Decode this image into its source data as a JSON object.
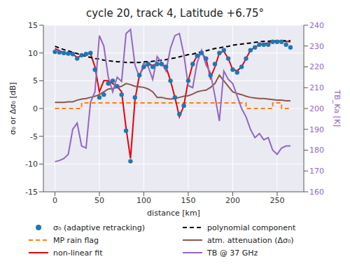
{
  "chart_data": {
    "type": "line",
    "title": "cycle 20, track 4, Latitude +6.75°",
    "x_label": "distance [km]",
    "y_label": "σ₀ or Δσ₀ [dB]",
    "y2_label": "TB_Ka [K]",
    "grid": true,
    "legend": "bottom",
    "xlim": [
      -13,
      280
    ],
    "xticks": [
      0,
      50,
      100,
      150,
      200,
      250
    ],
    "ylim": [
      -15,
      15
    ],
    "yticks": [
      -15,
      -10,
      -5,
      0,
      5,
      10,
      15
    ],
    "y2lim": [
      160,
      240
    ],
    "y2ticks": [
      160,
      170,
      180,
      190,
      200,
      210,
      220,
      230,
      240
    ],
    "x": [
      0,
      5,
      10,
      15,
      20,
      25,
      30,
      35,
      40,
      45,
      50,
      55,
      60,
      65,
      70,
      75,
      80,
      85,
      90,
      95,
      100,
      105,
      110,
      115,
      120,
      125,
      130,
      135,
      140,
      145,
      150,
      155,
      160,
      165,
      170,
      175,
      180,
      185,
      190,
      195,
      200,
      205,
      210,
      215,
      220,
      225,
      230,
      235,
      240,
      245,
      250,
      255,
      260,
      265
    ],
    "series": [
      {
        "name": "σ₀ (adaptive retracking)",
        "type": "scatter",
        "marker": "circle",
        "color": "#1f77b4",
        "values": [
          10.2,
          10.1,
          10.0,
          9.9,
          9.8,
          9.0,
          9.6,
          9.8,
          10.0,
          7.0,
          2.0,
          2.5,
          4.5,
          5.0,
          4.0,
          2.5,
          -4.0,
          -9.5,
          2.0,
          6.0,
          7.5,
          8.0,
          7.5,
          8.0,
          8.0,
          7.5,
          5.0,
          2.0,
          -1.0,
          0.5,
          5.0,
          8.0,
          9.5,
          10.0,
          9.0,
          6.0,
          8.0,
          10.0,
          10.5,
          9.0,
          7.0,
          6.5,
          7.5,
          9.0,
          10.5,
          11.0,
          11.5,
          11.5,
          11.5,
          12.0,
          12.0,
          12.0,
          11.5,
          11.0
        ]
      },
      {
        "name": "MP rain flag",
        "type": "step",
        "line_style": "dashed",
        "color": "#ff7f0e",
        "values": [
          0,
          0,
          0,
          0,
          0,
          0,
          1,
          1,
          1,
          1,
          1,
          1,
          1,
          1,
          1,
          1,
          1,
          1,
          1,
          1,
          1,
          1,
          1,
          1,
          1,
          1,
          1,
          1,
          1,
          1,
          1,
          1,
          1,
          1,
          1,
          1,
          1,
          1,
          1,
          1,
          1,
          1,
          1,
          0,
          0,
          0,
          0,
          0,
          0,
          1,
          1,
          0,
          0,
          0
        ]
      },
      {
        "name": "non-linear fit",
        "type": "line",
        "line_style": "solid",
        "color": "#e8000b",
        "values": [
          10.8,
          10.4,
          10.0,
          9.9,
          9.8,
          9.2,
          9.5,
          9.8,
          9.9,
          7.5,
          3.0,
          5.0,
          5.0,
          4.5,
          4.0,
          3.0,
          -3.5,
          -9.0,
          1.5,
          6.0,
          7.5,
          8.0,
          7.8,
          8.0,
          8.0,
          7.5,
          5.0,
          2.0,
          -1.5,
          0.5,
          5.0,
          8.0,
          9.5,
          10.0,
          9.0,
          5.5,
          7.5,
          10.0,
          10.3,
          9.0,
          7.0,
          6.8,
          7.5,
          9.0,
          10.5,
          11.0,
          11.5,
          11.7,
          11.8,
          12.0,
          12.1,
          12.2,
          12.1,
          12.0
        ]
      },
      {
        "name": "polynomial component",
        "type": "line",
        "line_style": "dashed",
        "color": "#000000",
        "values": [
          11.2,
          10.9,
          10.6,
          10.4,
          10.1,
          9.9,
          9.6,
          9.4,
          9.2,
          9.0,
          8.9,
          8.7,
          8.6,
          8.5,
          8.4,
          8.4,
          8.3,
          8.3,
          8.3,
          8.3,
          8.4,
          8.4,
          8.5,
          8.6,
          8.7,
          8.8,
          9.0,
          9.1,
          9.3,
          9.5,
          9.7,
          9.8,
          10.0,
          10.2,
          10.4,
          10.6,
          10.8,
          10.9,
          11.1,
          11.2,
          11.4,
          11.5,
          11.6,
          11.7,
          11.8,
          11.9,
          12.0,
          12.1,
          12.1,
          12.2,
          12.2,
          12.2,
          12.2,
          12.2
        ]
      },
      {
        "name": "atm. attenuation (Δσ₀)",
        "type": "line",
        "line_style": "solid",
        "color": "#8c564b",
        "values": [
          1.1,
          1.1,
          1.1,
          1.2,
          1.2,
          1.5,
          1.7,
          1.8,
          2.0,
          2.2,
          2.5,
          3.0,
          3.5,
          3.6,
          3.8,
          4.0,
          4.5,
          4.3,
          4.0,
          3.9,
          3.8,
          3.5,
          3.0,
          2.0,
          2.0,
          1.8,
          1.7,
          1.8,
          2.0,
          2.2,
          2.3,
          2.6,
          3.0,
          3.2,
          3.3,
          3.8,
          4.5,
          6.0,
          5.0,
          4.0,
          3.0,
          2.7,
          2.5,
          2.2,
          2.0,
          1.9,
          1.8,
          1.8,
          1.7,
          1.6,
          1.5,
          1.5,
          1.4,
          1.4
        ]
      },
      {
        "name": "TB @ 37 GHz",
        "type": "line",
        "line_style": "solid",
        "axis": "y2",
        "color": "#9467bd",
        "values": [
          174.5,
          175,
          176,
          178,
          190,
          193,
          182,
          181,
          203,
          208,
          235,
          230,
          215,
          208,
          215,
          213,
          236,
          238,
          221,
          215,
          222,
          220,
          214,
          225,
          222,
          218,
          229,
          235,
          236,
          226,
          211,
          210,
          222,
          228,
          221,
          217,
          206,
          194,
          218,
          214,
          212,
          206,
          200,
          196,
          190,
          186,
          188,
          185,
          186,
          180,
          178,
          181,
          182,
          182
        ]
      }
    ]
  }
}
